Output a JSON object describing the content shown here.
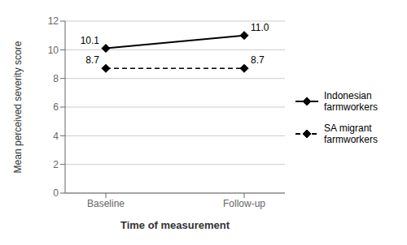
{
  "chart_data": {
    "type": "line",
    "categories": [
      "Baseline",
      "Follow-up"
    ],
    "series": [
      {
        "name": "Indonesian\nfarmworkers",
        "color": "#000000",
        "values": [
          10.1,
          11.0
        ],
        "value_labels": [
          "10.1",
          "11.0"
        ],
        "marker": "diamond",
        "line_style": "solid"
      },
      {
        "name": "SA migrant\nfarmworkers",
        "color": "#000000",
        "values": [
          8.7,
          8.7
        ],
        "value_labels": [
          "8.7",
          "8.7"
        ],
        "marker": "diamond",
        "line_style": "dashed"
      }
    ],
    "xlabel": "Time of measurement",
    "ylabel": "Mean perceived severity score",
    "ylim": [
      0,
      12
    ],
    "yticks": [
      0,
      2,
      4,
      6,
      8,
      10,
      12
    ],
    "grid": true,
    "legend": "right",
    "data_labels": true
  }
}
